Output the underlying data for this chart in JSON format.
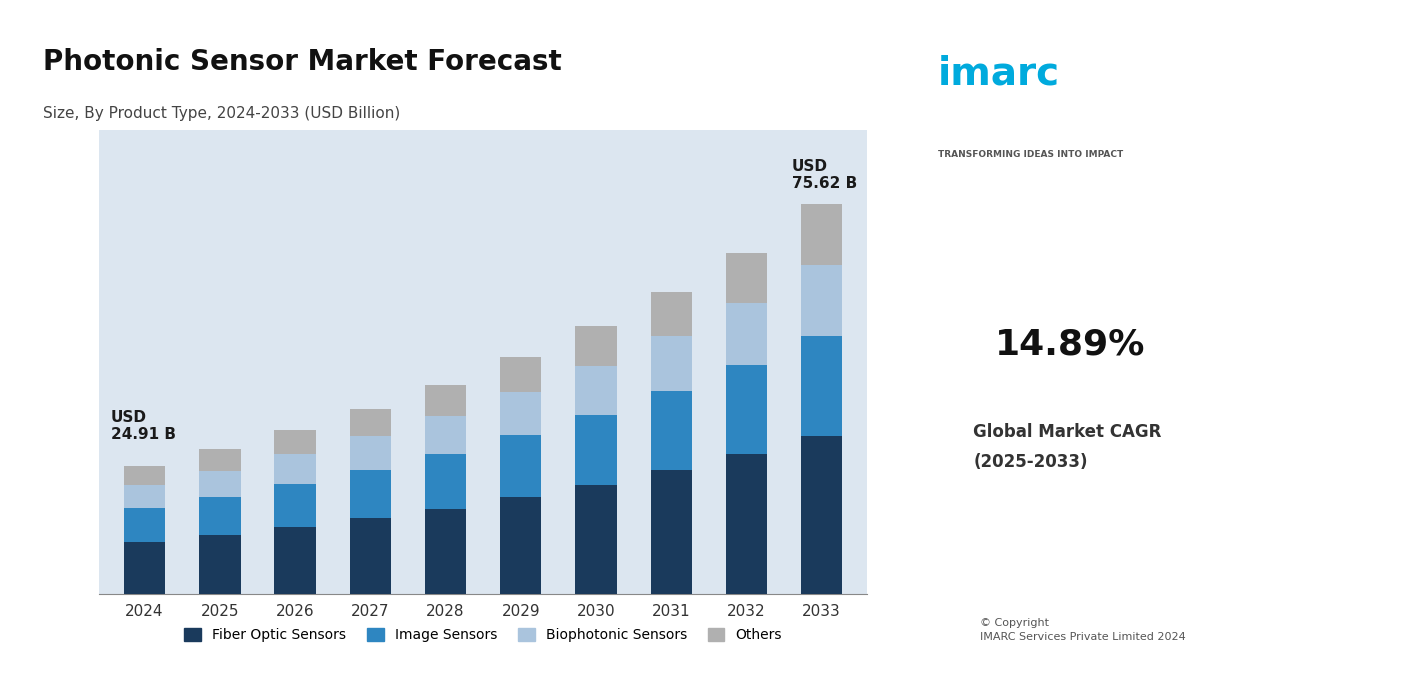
{
  "title": "Photonic Sensor Market Forecast",
  "subtitle": "Size, By Product Type, 2024-2033 (USD Billion)",
  "years": [
    2024,
    2025,
    2026,
    2027,
    2028,
    2029,
    2030,
    2031,
    2032,
    2033
  ],
  "fiber_optic": [
    10.2,
    11.5,
    13.0,
    14.7,
    16.6,
    18.8,
    21.2,
    24.0,
    27.1,
    30.6
  ],
  "image_sensors": [
    6.5,
    7.3,
    8.3,
    9.4,
    10.6,
    12.0,
    13.6,
    15.3,
    17.3,
    19.5
  ],
  "biophotonic": [
    4.5,
    5.1,
    5.8,
    6.5,
    7.4,
    8.4,
    9.5,
    10.7,
    12.1,
    13.7
  ],
  "others": [
    3.71,
    4.19,
    4.72,
    5.31,
    5.99,
    6.75,
    7.61,
    8.58,
    9.69,
    11.82
  ],
  "total_2024": 24.91,
  "total_2033": 75.62,
  "colors": {
    "fiber_optic": "#1a3a5c",
    "image_sensors": "#2e86c1",
    "biophotonic": "#aac4dd",
    "others": "#b0b0b0",
    "background": "#dce6f0"
  },
  "legend_labels": [
    "Fiber Optic Sensors",
    "Image Sensors",
    "Biophotonic Sensors",
    "Others"
  ],
  "annotation_2024": "USD\n24.91 B",
  "annotation_2033": "USD\n75.62 B"
}
